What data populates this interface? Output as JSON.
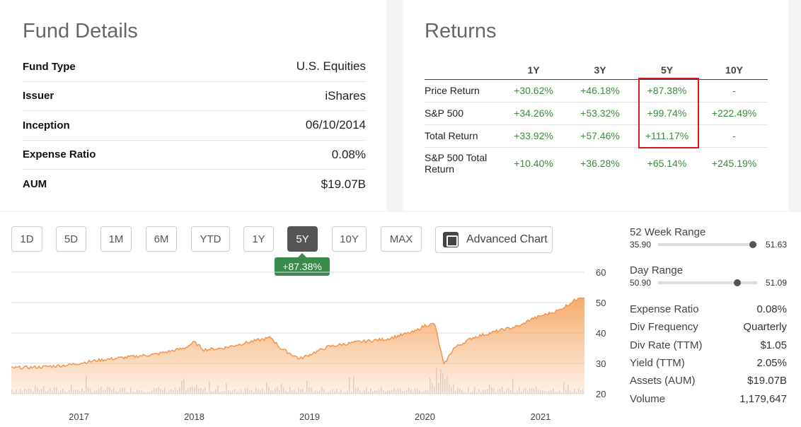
{
  "fund_details": {
    "title": "Fund Details",
    "rows": [
      {
        "label": "Fund Type",
        "value": "U.S. Equities"
      },
      {
        "label": "Issuer",
        "value": "iShares"
      },
      {
        "label": "Inception",
        "value": "06/10/2014"
      },
      {
        "label": "Expense Ratio",
        "value": "0.08%"
      },
      {
        "label": "AUM",
        "value": "$19.07B"
      }
    ]
  },
  "returns": {
    "title": "Returns",
    "columns": [
      "1Y",
      "3Y",
      "5Y",
      "10Y"
    ],
    "rows": [
      {
        "label": "Price Return",
        "values": [
          "+30.62%",
          "+46.18%",
          "+87.38%",
          "-"
        ]
      },
      {
        "label": "S&P 500",
        "values": [
          "+34.26%",
          "+53.32%",
          "+99.74%",
          "+222.49%"
        ]
      },
      {
        "label": "Total Return",
        "values": [
          "+33.92%",
          "+57.46%",
          "+111.17%",
          "-"
        ]
      },
      {
        "label": "S&P 500 Total Return",
        "values": [
          "+10.40%",
          "+36.28%",
          "+65.14%",
          "+245.19%"
        ]
      }
    ]
  },
  "timeframes": [
    "1D",
    "5D",
    "1M",
    "6M",
    "YTD",
    "1Y",
    "5Y",
    "10Y",
    "MAX"
  ],
  "active_timeframe": "5Y",
  "advanced_chart_label": "Advanced Chart",
  "change_badge": "+87.38%",
  "chart_data": {
    "type": "area",
    "x_ticks": [
      "2017",
      "2018",
      "2019",
      "2020",
      "2021"
    ],
    "y_ticks": [
      60,
      50,
      40,
      30,
      20
    ],
    "ylim": [
      20,
      60
    ],
    "x": [
      "2016-06",
      "2016-09",
      "2016-12",
      "2017-03",
      "2017-06",
      "2017-09",
      "2017-12",
      "2018-01",
      "2018-02",
      "2018-04",
      "2018-06",
      "2018-09",
      "2018-10",
      "2018-12",
      "2019-03",
      "2019-06",
      "2019-09",
      "2019-12",
      "2020-01",
      "2020-02",
      "2020-03",
      "2020-04",
      "2020-06",
      "2020-09",
      "2020-11",
      "2020-12",
      "2021-03",
      "2021-05"
    ],
    "values": [
      28.5,
      28.8,
      29.5,
      31,
      32,
      33,
      35,
      37,
      34.5,
      35,
      36.5,
      38.5,
      35,
      31.5,
      35.5,
      37,
      38,
      40.5,
      42.5,
      43,
      29.5,
      35,
      38.5,
      41,
      42.5,
      44.5,
      47.5,
      51.5
    ],
    "colors": {
      "line": "#f0964f",
      "fill": "#f5a866"
    }
  },
  "week52_range": {
    "label": "52 Week Range",
    "low": "35.90",
    "high": "51.63",
    "position": 0.96
  },
  "day_range": {
    "label": "Day Range",
    "low": "50.90",
    "high": "51.09",
    "position": 0.8
  },
  "stats": [
    {
      "label": "Expense Ratio",
      "value": "0.08%"
    },
    {
      "label": "Div Frequency",
      "value": "Quarterly"
    },
    {
      "label": "Div Rate (TTM)",
      "value": "$1.05"
    },
    {
      "label": "Yield (TTM)",
      "value": "2.05%"
    },
    {
      "label": "Assets (AUM)",
      "value": "$19.07B"
    },
    {
      "label": "Volume",
      "value": "1,179,647"
    }
  ]
}
